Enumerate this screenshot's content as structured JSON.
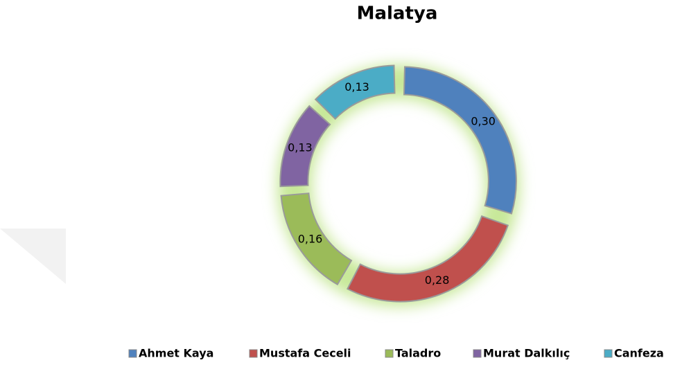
{
  "chart_data": {
    "type": "donut",
    "title": "Malatya",
    "categories": [
      "Ahmet Kaya",
      "Mustafa Ceceli",
      "Taladro",
      "Murat Dalkılıç",
      "Canfeza"
    ],
    "values": [
      0.3,
      0.28,
      0.16,
      0.13,
      0.13
    ],
    "value_labels": [
      "0,30",
      "0,28",
      "0,16",
      "0,13",
      "0,13"
    ],
    "colors": [
      "#4f81bd",
      "#c0504d",
      "#9bbb59",
      "#8064a2",
      "#4bacc6"
    ],
    "legend": "bottom"
  }
}
